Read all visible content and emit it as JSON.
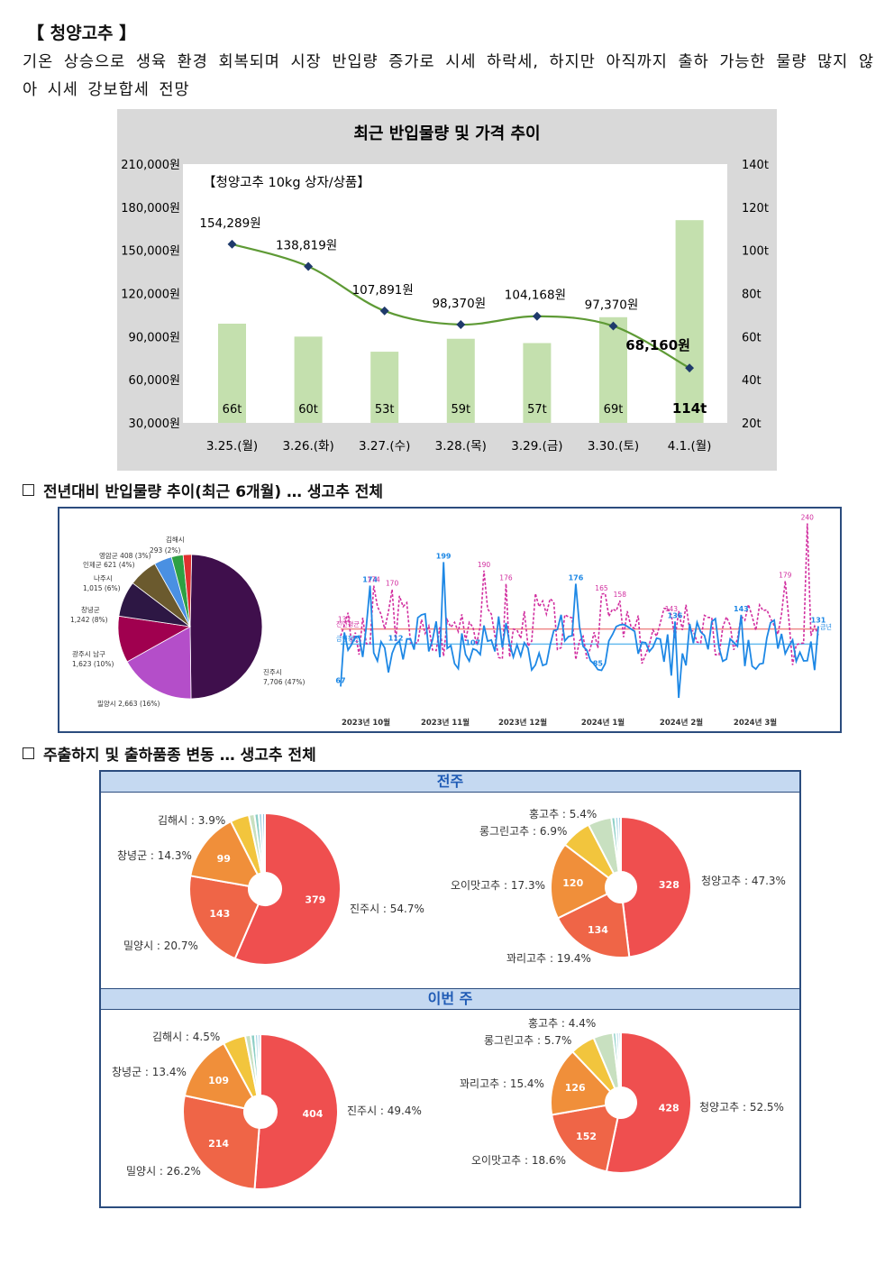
{
  "heading": "【 청양고추 】",
  "body": "기온 상승으로 생육 환경 회복되며 시장 반입량 증가로 시세 하락세, 하지만 아직까지 출하 가능한 물량 많지 않아 시세 강보합세 전망",
  "chart1": {
    "title": "최근 반입물량 및 가격 추이",
    "subtitle": "【청양고추 10kg 상자/상품】",
    "left_ticks": [
      "210,000원",
      "180,000원",
      "150,000원",
      "120,000원",
      "90,000원",
      "60,000원",
      "30,000원"
    ],
    "right_ticks": [
      "140t",
      "120t",
      "100t",
      "80t",
      "60t",
      "40t",
      "20t"
    ],
    "categories": [
      "3.25.(월)",
      "3.26.(화)",
      "3.27.(수)",
      "3.28.(목)",
      "3.29.(금)",
      "3.30.(토)",
      "4.1.(월)"
    ],
    "volume_labels": [
      "66t",
      "60t",
      "53t",
      "59t",
      "57t",
      "69t",
      "114t"
    ],
    "price_labels": [
      "154,289원",
      "138,819원",
      "107,891원",
      "98,370원",
      "104,168원",
      "97,370원",
      "68,160원"
    ]
  },
  "chart_data": [
    {
      "type": "bar+line",
      "title": "최근 반입물량 및 가격 추이",
      "categories": [
        "3.25.(월)",
        "3.26.(화)",
        "3.27.(수)",
        "3.28.(목)",
        "3.29.(금)",
        "3.30.(토)",
        "4.1.(월)"
      ],
      "series": [
        {
          "name": "반입물량",
          "unit": "t",
          "values": [
            66,
            60,
            53,
            59,
            57,
            69,
            114
          ]
        },
        {
          "name": "가격",
          "unit": "원",
          "values": [
            154289,
            138819,
            107891,
            98370,
            104168,
            97370,
            68160
          ]
        }
      ],
      "ylim_left": [
        30000,
        210000
      ],
      "ylim_right": [
        20,
        140
      ]
    },
    {
      "type": "pie",
      "labels": [
        "진주시",
        "밀양시",
        "광주시 남구",
        "창녕군",
        "나주시",
        "인제군",
        "영암군",
        "김해시"
      ],
      "values": [
        7706,
        2663,
        1623,
        1242,
        1015,
        621,
        408,
        293
      ],
      "percent": [
        47,
        16,
        10,
        8,
        6,
        4,
        3,
        2
      ],
      "colors": [
        "#3f0f4c",
        "#b44ec9",
        "#a0004f",
        "#2d1744",
        "#6b5a2e",
        "#4a90e2",
        "#2ea043",
        "#e03030"
      ]
    },
    {
      "type": "line",
      "x_labels": [
        "2023년 10월",
        "2023년 11월",
        "2023년 12월",
        "2024년 1월",
        "2024년 2월",
        "2024년 3월"
      ],
      "annotations_blue": [
        67,
        174,
        112,
        199,
        107,
        176,
        85,
        136,
        143,
        131
      ],
      "annotations_pink": [
        132,
        174,
        170,
        190,
        176,
        165,
        158,
        143,
        179,
        240
      ]
    },
    {
      "type": "pie",
      "title": "전주 산지",
      "labels": [
        "진주시",
        "밀양시",
        "창녕군",
        "김해시"
      ],
      "values": [
        379,
        143,
        99,
        27
      ],
      "percent_labels": [
        "진주시 : 54.7%",
        "밀양시 : 20.7%",
        "창녕군 : 14.3%",
        "김해시 : 3.9%"
      ]
    },
    {
      "type": "pie",
      "title": "전주 품종",
      "labels": [
        "청양고추",
        "꽈리고추",
        "오이맛고추",
        "롱그린고추",
        "홍고추"
      ],
      "values": [
        328,
        134,
        120,
        48,
        37
      ],
      "percent_labels": [
        "청양고추 : 47.3%",
        "꽈리고추 : 19.4%",
        "오이맛고추 : 17.3%",
        "롱그린고추 : 6.9%",
        "홍고추 : 5.4%"
      ]
    },
    {
      "type": "pie",
      "title": "이번 주 산지",
      "labels": [
        "진주시",
        "밀양시",
        "창녕군",
        "김해시"
      ],
      "values": [
        404,
        214,
        109,
        37
      ],
      "percent_labels": [
        "진주시 : 49.4%",
        "밀양시 : 26.2%",
        "창녕군 : 13.4%",
        "김해시 : 4.5%"
      ]
    },
    {
      "type": "pie",
      "title": "이번 주 품종",
      "labels": [
        "청양고추",
        "오이맛고추",
        "꽈리고추",
        "롱그린고추",
        "홍고추"
      ],
      "values": [
        428,
        152,
        126,
        46,
        36
      ],
      "percent_labels": [
        "청양고추 : 52.5%",
        "오이맛고추 : 18.6%",
        "꽈리고추 : 15.4%",
        "롱그린고추 : 5.7%",
        "홍고추 : 4.4%"
      ]
    }
  ],
  "section2": {
    "title": "전년대비 반입물량 추이(최근 6개월) … 생고추 전체",
    "pie_labels": [
      "김해시",
      "293 (2%)",
      "영암군 408 (3%)",
      "인제군 621 (4%)",
      "나주시",
      "1,015 (6%)",
      "창녕군",
      "1,242 (8%)",
      "광주시 남구",
      "1,623 (10%)",
      "밀양시 2,663 (16%)",
      "진주시",
      "7,706 (47%)"
    ],
    "x_labels": [
      "2023년 10월",
      "2023년 11월",
      "2023년 12월",
      "2024년 1월",
      "2024년 2월",
      "2024년 3월"
    ],
    "blue_notes": [
      "67",
      "174",
      "112",
      "199",
      "107",
      "176",
      "85",
      "136",
      "143",
      "131"
    ],
    "pink_notes": [
      "132",
      "174",
      "170",
      "190",
      "176",
      "165",
      "158",
      "143",
      "179",
      "240"
    ],
    "line_labels": [
      "전년평균",
      "금년평균",
      "금년"
    ]
  },
  "section3": {
    "title": "주출하지 및 출하품종 변동 … 생고추 전체",
    "band_prev": "전주",
    "band_this": "이번 주",
    "prev_region": {
      "inner": [
        "379",
        "143",
        "99"
      ],
      "labels": [
        "김해시 : 3.9%",
        "창녕군 : 14.3%",
        "밀양시 : 20.7%",
        "진주시 : 54.7%"
      ]
    },
    "prev_variety": {
      "inner": [
        "328",
        "134",
        "120"
      ],
      "labels": [
        "홍고추 : 5.4%",
        "롱그린고추 : 6.9%",
        "오이맛고추 : 17.3%",
        "꽈리고추 : 19.4%",
        "청양고추 : 47.3%"
      ]
    },
    "this_region": {
      "inner": [
        "404",
        "214",
        "109"
      ],
      "labels": [
        "김해시 : 4.5%",
        "창녕군 : 13.4%",
        "밀양시 : 26.2%",
        "진주시 : 49.4%"
      ]
    },
    "this_variety": {
      "inner": [
        "428",
        "152",
        "126"
      ],
      "labels": [
        "홍고추 : 4.4%",
        "롱그린고추 : 5.7%",
        "꽈리고추 : 15.4%",
        "오이맛고추 : 18.6%",
        "청양고추 : 52.5%"
      ]
    }
  }
}
